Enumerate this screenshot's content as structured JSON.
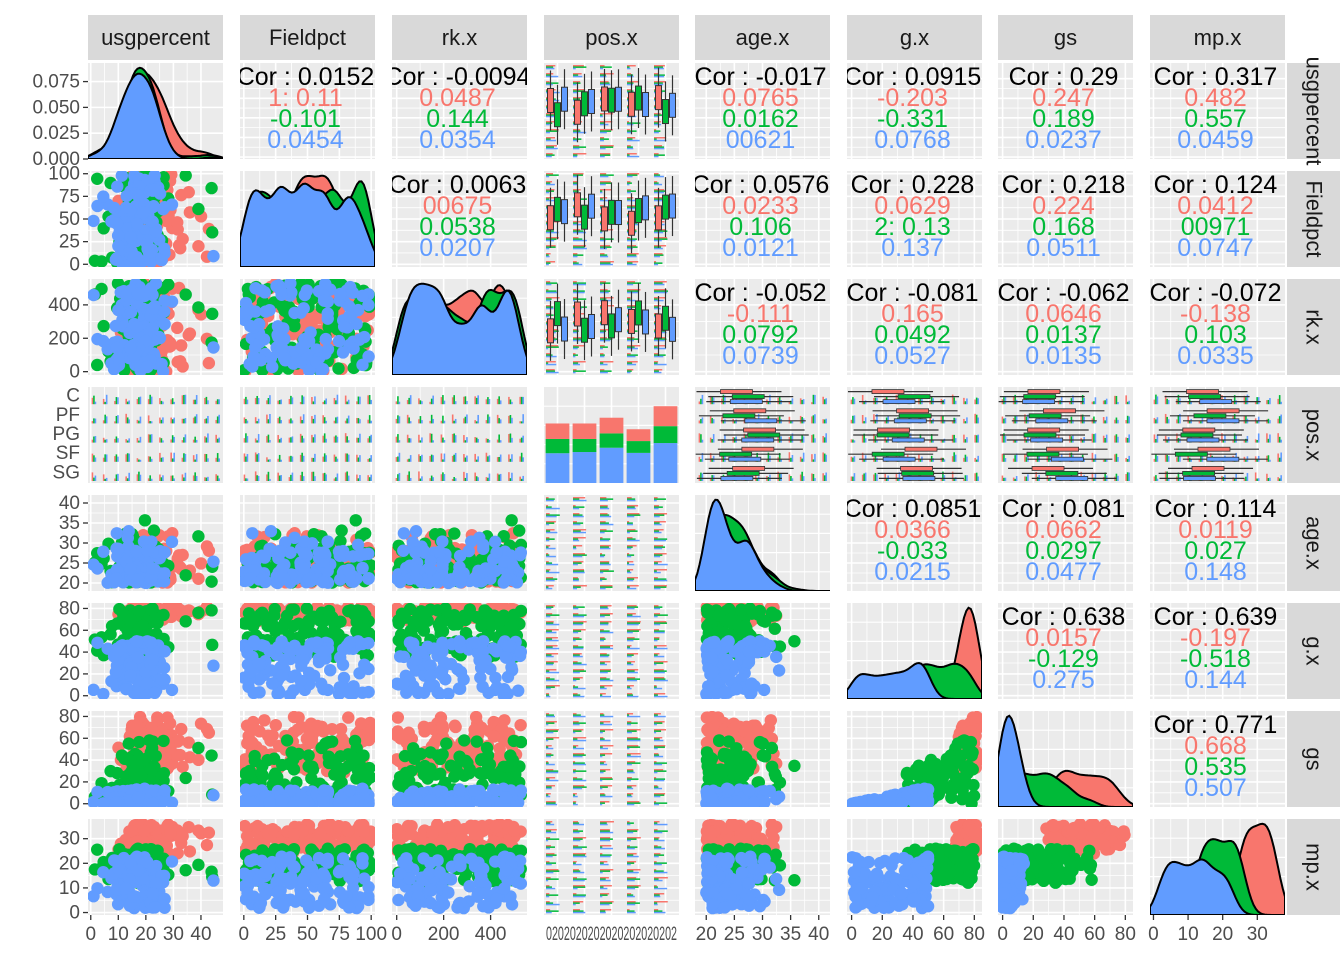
{
  "chart_data": {
    "type": "scatter",
    "kind": "pairs-plot-matrix",
    "variables": [
      "usgpercent",
      "Fieldpct",
      "rk.x",
      "pos.x",
      "age.x",
      "g.x",
      "gs",
      "mp.x"
    ],
    "column_strip_labels": [
      "usgpercent",
      "Fieldpct",
      "rk.x",
      "pos.x",
      "age.x",
      "g.x",
      "gs",
      "mp.x"
    ],
    "row_strip_labels": [
      "usgpercent",
      "Fieldpct",
      "rk.x",
      "pos.x",
      "age.x",
      "g.x",
      "gs",
      "mp.x"
    ],
    "group_colors": [
      "#F8766D",
      "#00BA38",
      "#619CFF"
    ],
    "panel_background": "#EBEBEB",
    "strip_background": "#D9D9D9",
    "grid": true,
    "legend": "none",
    "axes": {
      "usgpercent": {
        "range": [
          -1,
          48
        ],
        "ticks": [
          0,
          10,
          20,
          30,
          40
        ],
        "tick_labels": [
          "0",
          "10",
          "20",
          "30",
          "40"
        ],
        "diag_ticks": [
          0.0,
          0.025,
          0.05,
          0.075
        ],
        "diag_tick_labels": [
          "0.000",
          "0.025",
          "0.050",
          "0.075"
        ],
        "diag_range": [
          0,
          0.093
        ]
      },
      "Fieldpct": {
        "range": [
          -3,
          103
        ],
        "ticks": [
          0,
          25,
          50,
          75,
          100
        ],
        "tick_labels": [
          "0",
          "25",
          "50",
          "75",
          "100"
        ]
      },
      "rk.x": {
        "range": [
          -20,
          555
        ],
        "ticks": [
          0,
          200,
          400
        ],
        "tick_labels": [
          "0",
          "200",
          "400"
        ]
      },
      "pos.x": {
        "categorical": true,
        "levels": 5,
        "tick_labels": [
          "C",
          "PF",
          "PG",
          "SF",
          "SG"
        ],
        "rendered_ticks_text": "0202020202020202020202 6868686868686868686868"
      },
      "age.x": {
        "range": [
          18,
          42
        ],
        "ticks": [
          20,
          25,
          30,
          35,
          40
        ],
        "tick_labels": [
          "20",
          "25",
          "30",
          "35",
          "40"
        ]
      },
      "g.x": {
        "range": [
          -3,
          85
        ],
        "ticks": [
          0,
          20,
          40,
          60,
          80
        ],
        "tick_labels": [
          "0",
          "20",
          "40",
          "60",
          "80"
        ]
      },
      "gs": {
        "range": [
          -3,
          85
        ],
        "ticks": [
          0,
          20,
          40,
          60,
          80
        ],
        "tick_labels": [
          "0",
          "20",
          "40",
          "60",
          "80"
        ]
      },
      "mp.x": {
        "range": [
          -1,
          38
        ],
        "ticks": [
          0,
          10,
          20,
          30
        ],
        "tick_labels": [
          "0",
          "10",
          "20",
          "30"
        ]
      }
    },
    "correlations": [
      {
        "row": "usgpercent",
        "col": "Fieldpct",
        "lines": [
          "Cor : 0.0152",
          "1: 0.11",
          "-0.101",
          "0.0454"
        ]
      },
      {
        "row": "usgpercent",
        "col": "rk.x",
        "lines": [
          "Cor : -0.0094",
          "0.0487",
          "0.144",
          "0.0354"
        ]
      },
      {
        "row": "usgpercent",
        "col": "age.x",
        "lines": [
          "Cor : -0.017",
          "0.0765",
          "0.0162",
          "00621"
        ]
      },
      {
        "row": "usgpercent",
        "col": "g.x",
        "lines": [
          "Cor : 0.0915",
          "-0.203",
          "-0.331",
          "0.0768"
        ]
      },
      {
        "row": "usgpercent",
        "col": "gs",
        "lines": [
          "Cor : 0.29",
          "0.247",
          "0.189",
          "0.0237"
        ]
      },
      {
        "row": "usgpercent",
        "col": "mp.x",
        "lines": [
          "Cor : 0.317",
          "0.482",
          "0.557",
          "0.0459"
        ]
      },
      {
        "row": "Fieldpct",
        "col": "rk.x",
        "lines": [
          "Cor : 0.0063",
          "00675",
          "0.0538",
          "0.0207"
        ]
      },
      {
        "row": "Fieldpct",
        "col": "age.x",
        "lines": [
          "Cor : 0.0576",
          "0.0233",
          "0.106",
          "0.0121"
        ]
      },
      {
        "row": "Fieldpct",
        "col": "g.x",
        "lines": [
          "Cor : 0.228",
          "0.0629",
          "2: 0.13",
          "0.137"
        ]
      },
      {
        "row": "Fieldpct",
        "col": "gs",
        "lines": [
          "Cor : 0.218",
          "0.224",
          "0.168",
          "0.0511"
        ]
      },
      {
        "row": "Fieldpct",
        "col": "mp.x",
        "lines": [
          "Cor : 0.124",
          "0.0412",
          "00971",
          "0.0747"
        ]
      },
      {
        "row": "rk.x",
        "col": "age.x",
        "lines": [
          "Cor : -0.052",
          "-0.111",
          "0.0792",
          "0.0739"
        ]
      },
      {
        "row": "rk.x",
        "col": "g.x",
        "lines": [
          "Cor : -0.081",
          "0.165",
          "0.0492",
          "0.0527"
        ]
      },
      {
        "row": "rk.x",
        "col": "gs",
        "lines": [
          "Cor : -0.062",
          "0.0646",
          "0.0137",
          "0.0135"
        ]
      },
      {
        "row": "rk.x",
        "col": "mp.x",
        "lines": [
          "Cor : -0.072",
          "-0.138",
          "0.103",
          "0.0335"
        ]
      },
      {
        "row": "age.x",
        "col": "g.x",
        "lines": [
          "Cor : 0.0851",
          "0.0366",
          "-0.033",
          "0.0215"
        ]
      },
      {
        "row": "age.x",
        "col": "gs",
        "lines": [
          "Cor : 0.081",
          "0.0662",
          "0.0297",
          "0.0477"
        ]
      },
      {
        "row": "age.x",
        "col": "mp.x",
        "lines": [
          "Cor : 0.114",
          "0.0119",
          "0.027",
          "0.148"
        ]
      },
      {
        "row": "g.x",
        "col": "gs",
        "lines": [
          "Cor : 0.638",
          "0.0157",
          "-0.129",
          "0.275"
        ]
      },
      {
        "row": "g.x",
        "col": "mp.x",
        "lines": [
          "Cor : 0.639",
          "-0.197",
          "-0.518",
          "0.144"
        ]
      },
      {
        "row": "gs",
        "col": "mp.x",
        "lines": [
          "Cor : 0.771",
          "0.668",
          "0.535",
          "0.507"
        ]
      }
    ],
    "pos_bar_proportions": [
      {
        "level": 1,
        "red": 0.26,
        "green": 0.24,
        "blue": 0.5
      },
      {
        "level": 2,
        "red": 0.26,
        "green": 0.22,
        "blue": 0.52
      },
      {
        "level": 3,
        "red": 0.24,
        "green": 0.22,
        "blue": 0.54
      },
      {
        "level": 4,
        "red": 0.22,
        "green": 0.22,
        "blue": 0.56
      },
      {
        "level": 5,
        "red": 0.26,
        "green": 0.22,
        "blue": 0.52
      }
    ]
  }
}
